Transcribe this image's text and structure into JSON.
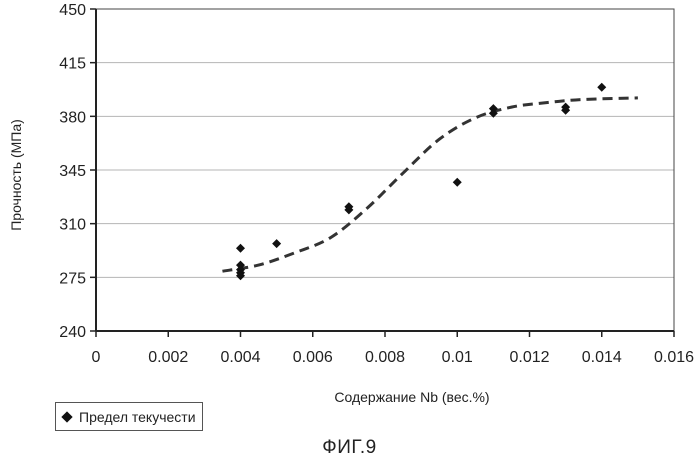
{
  "chart_data": {
    "type": "scatter",
    "title": "",
    "xlabel": "Содержание Nb (вес.%)",
    "ylabel": "Прочность (МПа)",
    "xlim": [
      0,
      0.016
    ],
    "ylim": [
      240,
      450
    ],
    "x_ticks": [
      "0",
      "0.002",
      "0.004",
      "0.006",
      "0.008",
      "0.01",
      "0.012",
      "0.014",
      "0.016"
    ],
    "y_ticks": [
      "240",
      "275",
      "310",
      "345",
      "380",
      "415",
      "450"
    ],
    "grid": "horizontal",
    "legend_position": "bottom-left",
    "series": [
      {
        "name": "Предел текучести",
        "marker": "diamond",
        "color": "#111111",
        "points": [
          {
            "x": 0.004,
            "y": 294
          },
          {
            "x": 0.004,
            "y": 283
          },
          {
            "x": 0.004,
            "y": 280
          },
          {
            "x": 0.004,
            "y": 278
          },
          {
            "x": 0.004,
            "y": 276
          },
          {
            "x": 0.005,
            "y": 297
          },
          {
            "x": 0.007,
            "y": 321
          },
          {
            "x": 0.007,
            "y": 319
          },
          {
            "x": 0.01,
            "y": 337
          },
          {
            "x": 0.011,
            "y": 385
          },
          {
            "x": 0.011,
            "y": 382
          },
          {
            "x": 0.013,
            "y": 386
          },
          {
            "x": 0.013,
            "y": 384
          },
          {
            "x": 0.014,
            "y": 399
          }
        ]
      }
    ],
    "trend": {
      "style": "dashed",
      "points": [
        {
          "x": 0.0035,
          "y": 279
        },
        {
          "x": 0.0045,
          "y": 283
        },
        {
          "x": 0.0055,
          "y": 291
        },
        {
          "x": 0.0065,
          "y": 301
        },
        {
          "x": 0.0075,
          "y": 320
        },
        {
          "x": 0.0085,
          "y": 343
        },
        {
          "x": 0.0095,
          "y": 365
        },
        {
          "x": 0.0105,
          "y": 379
        },
        {
          "x": 0.0115,
          "y": 386
        },
        {
          "x": 0.0125,
          "y": 389
        },
        {
          "x": 0.0135,
          "y": 391
        },
        {
          "x": 0.015,
          "y": 392
        }
      ]
    }
  },
  "legend": {
    "label": "Предел текучести"
  },
  "caption": "ФИГ.9"
}
